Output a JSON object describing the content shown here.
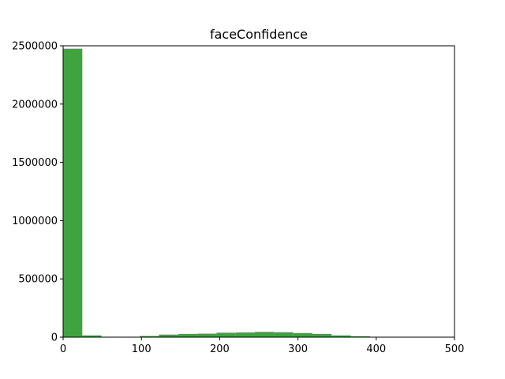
{
  "chart_data": {
    "type": "bar",
    "title": "faceConfidence",
    "xlabel": "",
    "ylabel": "",
    "bin_edges": [
      0,
      24.5,
      49,
      73.5,
      98,
      122.5,
      147,
      171.5,
      196,
      220.5,
      245,
      269.5,
      294,
      318.5,
      343,
      367.5,
      392,
      416.5,
      441,
      465.5,
      490
    ],
    "values": [
      2475000,
      15000,
      2000,
      3000,
      10000,
      22000,
      28000,
      30000,
      38000,
      40000,
      45000,
      42000,
      35000,
      28000,
      15000,
      8000,
      2000,
      500,
      200,
      100
    ],
    "xlim": [
      0,
      500
    ],
    "ylim": [
      0,
      2500000
    ],
    "x_ticks": [
      0,
      100,
      200,
      300,
      400,
      500
    ],
    "y_ticks": [
      0,
      500000,
      1000000,
      1500000,
      2000000,
      2500000
    ],
    "x_tick_labels": [
      "0",
      "100",
      "200",
      "300",
      "400",
      "500"
    ],
    "y_tick_labels": [
      "0",
      "500000",
      "1000000",
      "1500000",
      "2000000",
      "2500000"
    ],
    "bar_color": "#3fa33f",
    "grid": false,
    "legend": "none"
  }
}
